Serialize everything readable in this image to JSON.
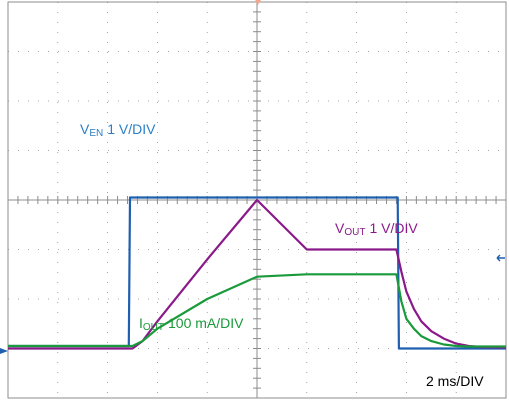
{
  "chart_data": {
    "type": "line",
    "xlim": [
      0,
      20
    ],
    "ylim": [
      -7,
      1
    ],
    "grid": true,
    "grid_divisions": {
      "x": 10,
      "y": 8
    },
    "background": "#ffffff",
    "grid_color": "#8c8c8c",
    "timebase_label": "2 ms/DIV",
    "series": [
      {
        "name_main": "V",
        "name_sub": "EN",
        "scale_label": "1 V/DIV",
        "color": "#1f5fb0",
        "label_color": "#2c7fc6",
        "x": [
          0,
          4.85,
          4.9,
          4.95,
          15.6,
          15.65,
          15.7,
          20
        ],
        "y": [
          -5.95,
          -5.95,
          -2.95,
          -2.95,
          -2.95,
          -2.95,
          -6.0,
          -6.0
        ]
      },
      {
        "name_main": "V",
        "name_sub": "OUT",
        "scale_label": "1 V/DIV",
        "color": "#8a1a8a",
        "label_color": "#8a1a8a",
        "x": [
          0,
          5.0,
          5.4,
          6.0,
          8.0,
          10.0,
          12.0,
          15.6,
          15.8,
          16.0,
          16.3,
          16.6,
          17.0,
          17.5,
          18.0,
          18.5,
          19.0,
          20.0
        ],
        "y": [
          -6.0,
          -6.0,
          -5.85,
          -5.45,
          -4.2,
          -3.0,
          -4.0,
          -4.0,
          -4.45,
          -4.85,
          -5.2,
          -5.45,
          -5.65,
          -5.8,
          -5.9,
          -5.95,
          -5.97,
          -5.98
        ]
      },
      {
        "name_main": "I",
        "name_sub": "OUT",
        "scale_label": "100 mA/DIV",
        "color": "#1a9a3a",
        "label_color": "#1a9a3a",
        "x": [
          0,
          5.0,
          5.4,
          6.0,
          8.0,
          10.0,
          12.0,
          15.6,
          15.8,
          16.0,
          16.3,
          16.6,
          17.0,
          17.5,
          18.0,
          18.5,
          20.0
        ],
        "y": [
          -5.95,
          -5.95,
          -5.85,
          -5.6,
          -5.0,
          -4.55,
          -4.5,
          -4.5,
          -5.05,
          -5.4,
          -5.6,
          -5.75,
          -5.85,
          -5.92,
          -5.95,
          -5.96,
          -5.96
        ]
      }
    ]
  }
}
